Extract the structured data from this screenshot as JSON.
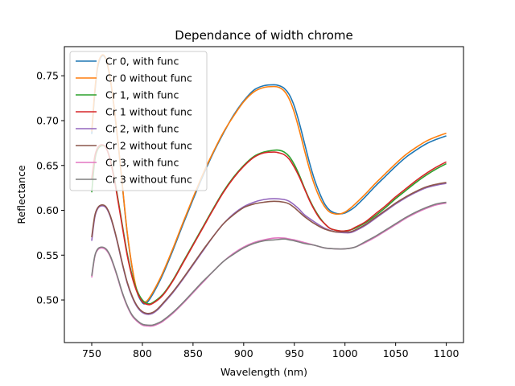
{
  "chart_data": {
    "type": "line",
    "title": "Dependance of width chrome",
    "xlabel": "Wavelength (nm)",
    "ylabel": "Reflectance",
    "xlim": [
      723,
      1117
    ],
    "ylim": [
      0.4525,
      0.7825
    ],
    "xticks": [
      750,
      800,
      850,
      900,
      950,
      1000,
      1050,
      1100
    ],
    "yticks": [
      0.5,
      0.55,
      0.6,
      0.65,
      0.7,
      0.75
    ],
    "xtick_labels": [
      "750",
      "800",
      "850",
      "900",
      "950",
      "1000",
      "1050",
      "1100"
    ],
    "ytick_labels": [
      "0.50",
      "0.55",
      "0.60",
      "0.65",
      "0.70",
      "0.75"
    ],
    "grid": false,
    "legend_position": "top-left",
    "series": [
      {
        "name": "Cr 0, with func",
        "color": "#1f77b4",
        "x": [
          750,
          753,
          756,
          760,
          764,
          768,
          772,
          776,
          780,
          785,
          790,
          795,
          800,
          803,
          806,
          812,
          820,
          830,
          840,
          850,
          860,
          870,
          880,
          890,
          900,
          910,
          920,
          930,
          935,
          940,
          945,
          950,
          955,
          960,
          965,
          970,
          975,
          980,
          985,
          990,
          995,
          1000,
          1005,
          1010,
          1020,
          1030,
          1040,
          1050,
          1060,
          1070,
          1080,
          1090,
          1100
        ],
        "y": [
          0.685,
          0.73,
          0.76,
          0.772,
          0.768,
          0.748,
          0.715,
          0.675,
          0.63,
          0.575,
          0.535,
          0.508,
          0.497,
          0.496,
          0.499,
          0.51,
          0.528,
          0.555,
          0.584,
          0.612,
          0.639,
          0.664,
          0.686,
          0.706,
          0.722,
          0.734,
          0.739,
          0.74,
          0.739,
          0.736,
          0.729,
          0.716,
          0.697,
          0.675,
          0.653,
          0.634,
          0.619,
          0.607,
          0.6,
          0.597,
          0.596,
          0.597,
          0.6,
          0.604,
          0.615,
          0.627,
          0.638,
          0.649,
          0.659,
          0.667,
          0.674,
          0.679,
          0.683
        ]
      },
      {
        "name": "Cr 0 without func",
        "color": "#ff7f0e",
        "x": [
          750,
          753,
          756,
          760,
          764,
          768,
          772,
          776,
          780,
          785,
          790,
          795,
          800,
          803,
          806,
          812,
          820,
          830,
          840,
          850,
          860,
          870,
          880,
          890,
          900,
          910,
          920,
          930,
          935,
          940,
          945,
          950,
          955,
          960,
          965,
          970,
          975,
          980,
          985,
          990,
          995,
          1000,
          1005,
          1010,
          1020,
          1030,
          1040,
          1050,
          1060,
          1070,
          1080,
          1090,
          1100
        ],
        "y": [
          0.688,
          0.733,
          0.762,
          0.773,
          0.769,
          0.749,
          0.716,
          0.676,
          0.631,
          0.576,
          0.536,
          0.509,
          0.499,
          0.498,
          0.501,
          0.512,
          0.53,
          0.557,
          0.586,
          0.614,
          0.641,
          0.665,
          0.687,
          0.705,
          0.721,
          0.732,
          0.737,
          0.738,
          0.737,
          0.733,
          0.724,
          0.709,
          0.689,
          0.667,
          0.646,
          0.628,
          0.614,
          0.604,
          0.598,
          0.596,
          0.596,
          0.598,
          0.602,
          0.607,
          0.618,
          0.63,
          0.641,
          0.652,
          0.662,
          0.67,
          0.677,
          0.682,
          0.686
        ]
      },
      {
        "name": "Cr 1, with func",
        "color": "#2ca02c",
        "x": [
          750,
          753,
          756,
          760,
          764,
          768,
          772,
          776,
          780,
          785,
          790,
          795,
          800,
          805,
          810,
          820,
          830,
          840,
          850,
          860,
          870,
          880,
          890,
          900,
          910,
          920,
          930,
          935,
          940,
          945,
          950,
          955,
          960,
          965,
          970,
          975,
          980,
          985,
          990,
          995,
          1000,
          1005,
          1010,
          1020,
          1030,
          1040,
          1050,
          1060,
          1070,
          1080,
          1090,
          1100
        ],
        "y": [
          0.62,
          0.655,
          0.668,
          0.672,
          0.67,
          0.658,
          0.638,
          0.612,
          0.585,
          0.552,
          0.527,
          0.51,
          0.5,
          0.496,
          0.497,
          0.506,
          0.522,
          0.542,
          0.562,
          0.582,
          0.602,
          0.621,
          0.637,
          0.65,
          0.66,
          0.665,
          0.667,
          0.667,
          0.665,
          0.66,
          0.651,
          0.639,
          0.625,
          0.612,
          0.601,
          0.592,
          0.585,
          0.58,
          0.578,
          0.577,
          0.577,
          0.578,
          0.58,
          0.586,
          0.594,
          0.603,
          0.613,
          0.622,
          0.631,
          0.639,
          0.646,
          0.652
        ]
      },
      {
        "name": "Cr 1 without func",
        "color": "#d62728",
        "x": [
          750,
          753,
          756,
          760,
          764,
          768,
          772,
          776,
          780,
          785,
          790,
          795,
          800,
          805,
          810,
          820,
          830,
          840,
          850,
          860,
          870,
          880,
          890,
          900,
          910,
          920,
          930,
          935,
          940,
          945,
          950,
          955,
          960,
          965,
          970,
          975,
          980,
          985,
          990,
          995,
          1000,
          1005,
          1010,
          1020,
          1030,
          1040,
          1050,
          1060,
          1070,
          1080,
          1090,
          1100
        ],
        "y": [
          0.635,
          0.66,
          0.67,
          0.673,
          0.67,
          0.657,
          0.636,
          0.61,
          0.583,
          0.55,
          0.525,
          0.508,
          0.498,
          0.495,
          0.496,
          0.505,
          0.521,
          0.541,
          0.561,
          0.581,
          0.601,
          0.62,
          0.636,
          0.649,
          0.659,
          0.664,
          0.665,
          0.664,
          0.662,
          0.657,
          0.648,
          0.637,
          0.624,
          0.611,
          0.6,
          0.591,
          0.585,
          0.58,
          0.578,
          0.577,
          0.577,
          0.578,
          0.581,
          0.587,
          0.596,
          0.605,
          0.615,
          0.624,
          0.633,
          0.641,
          0.648,
          0.654
        ]
      },
      {
        "name": "Cr 2, with func",
        "color": "#9467bd",
        "x": [
          750,
          753,
          756,
          760,
          764,
          768,
          772,
          776,
          780,
          785,
          790,
          795,
          800,
          805,
          810,
          815,
          820,
          830,
          840,
          850,
          860,
          870,
          880,
          890,
          900,
          910,
          920,
          930,
          940,
          945,
          950,
          955,
          960,
          970,
          980,
          990,
          1000,
          1005,
          1010,
          1020,
          1030,
          1040,
          1050,
          1060,
          1070,
          1080,
          1090,
          1100
        ],
        "y": [
          0.566,
          0.592,
          0.602,
          0.605,
          0.603,
          0.594,
          0.579,
          0.561,
          0.541,
          0.519,
          0.503,
          0.492,
          0.486,
          0.484,
          0.485,
          0.489,
          0.495,
          0.508,
          0.523,
          0.539,
          0.555,
          0.571,
          0.585,
          0.596,
          0.604,
          0.609,
          0.612,
          0.613,
          0.612,
          0.61,
          0.606,
          0.601,
          0.595,
          0.587,
          0.58,
          0.576,
          0.575,
          0.575,
          0.577,
          0.583,
          0.591,
          0.599,
          0.607,
          0.614,
          0.62,
          0.625,
          0.628,
          0.63
        ]
      },
      {
        "name": "Cr 2 without func",
        "color": "#8c564b",
        "x": [
          750,
          753,
          756,
          760,
          764,
          768,
          772,
          776,
          780,
          785,
          790,
          795,
          800,
          805,
          810,
          815,
          820,
          830,
          840,
          850,
          860,
          870,
          880,
          890,
          900,
          910,
          920,
          930,
          940,
          945,
          950,
          955,
          960,
          970,
          980,
          990,
          1000,
          1005,
          1010,
          1020,
          1030,
          1040,
          1050,
          1060,
          1070,
          1080,
          1090,
          1100
        ],
        "y": [
          0.57,
          0.594,
          0.603,
          0.606,
          0.604,
          0.595,
          0.58,
          0.562,
          0.542,
          0.52,
          0.504,
          0.493,
          0.487,
          0.485,
          0.486,
          0.49,
          0.496,
          0.509,
          0.524,
          0.54,
          0.556,
          0.571,
          0.585,
          0.595,
          0.603,
          0.607,
          0.609,
          0.61,
          0.609,
          0.607,
          0.603,
          0.598,
          0.593,
          0.585,
          0.579,
          0.576,
          0.576,
          0.576,
          0.578,
          0.584,
          0.592,
          0.6,
          0.608,
          0.615,
          0.621,
          0.626,
          0.629,
          0.631
        ]
      },
      {
        "name": "Cr 3, with func",
        "color": "#e377c2",
        "x": [
          750,
          753,
          756,
          760,
          764,
          768,
          772,
          776,
          780,
          785,
          790,
          795,
          800,
          805,
          810,
          815,
          820,
          830,
          840,
          850,
          860,
          870,
          880,
          890,
          900,
          910,
          920,
          930,
          940,
          945,
          950,
          960,
          970,
          980,
          990,
          1000,
          1010,
          1020,
          1030,
          1040,
          1050,
          1060,
          1070,
          1080,
          1090,
          1100
        ],
        "y": [
          0.525,
          0.548,
          0.556,
          0.558,
          0.556,
          0.549,
          0.537,
          0.523,
          0.508,
          0.493,
          0.482,
          0.476,
          0.472,
          0.471,
          0.471,
          0.473,
          0.476,
          0.485,
          0.496,
          0.508,
          0.52,
          0.532,
          0.543,
          0.552,
          0.559,
          0.564,
          0.567,
          0.569,
          0.569,
          0.568,
          0.567,
          0.564,
          0.561,
          0.558,
          0.557,
          0.557,
          0.559,
          0.564,
          0.57,
          0.577,
          0.584,
          0.591,
          0.597,
          0.602,
          0.606,
          0.608
        ]
      },
      {
        "name": "Cr 3 without func",
        "color": "#7f7f7f",
        "x": [
          750,
          753,
          756,
          760,
          764,
          768,
          772,
          776,
          780,
          785,
          790,
          795,
          800,
          805,
          810,
          815,
          820,
          830,
          840,
          850,
          860,
          870,
          880,
          890,
          900,
          910,
          920,
          930,
          940,
          945,
          950,
          960,
          970,
          980,
          990,
          1000,
          1010,
          1020,
          1030,
          1040,
          1050,
          1060,
          1070,
          1080,
          1090,
          1100
        ],
        "y": [
          0.527,
          0.549,
          0.557,
          0.559,
          0.557,
          0.55,
          0.538,
          0.524,
          0.509,
          0.494,
          0.483,
          0.477,
          0.473,
          0.472,
          0.472,
          0.474,
          0.477,
          0.486,
          0.497,
          0.509,
          0.521,
          0.532,
          0.543,
          0.551,
          0.558,
          0.563,
          0.566,
          0.567,
          0.568,
          0.567,
          0.566,
          0.563,
          0.561,
          0.558,
          0.557,
          0.557,
          0.559,
          0.565,
          0.571,
          0.578,
          0.585,
          0.592,
          0.598,
          0.603,
          0.607,
          0.609
        ]
      }
    ]
  }
}
